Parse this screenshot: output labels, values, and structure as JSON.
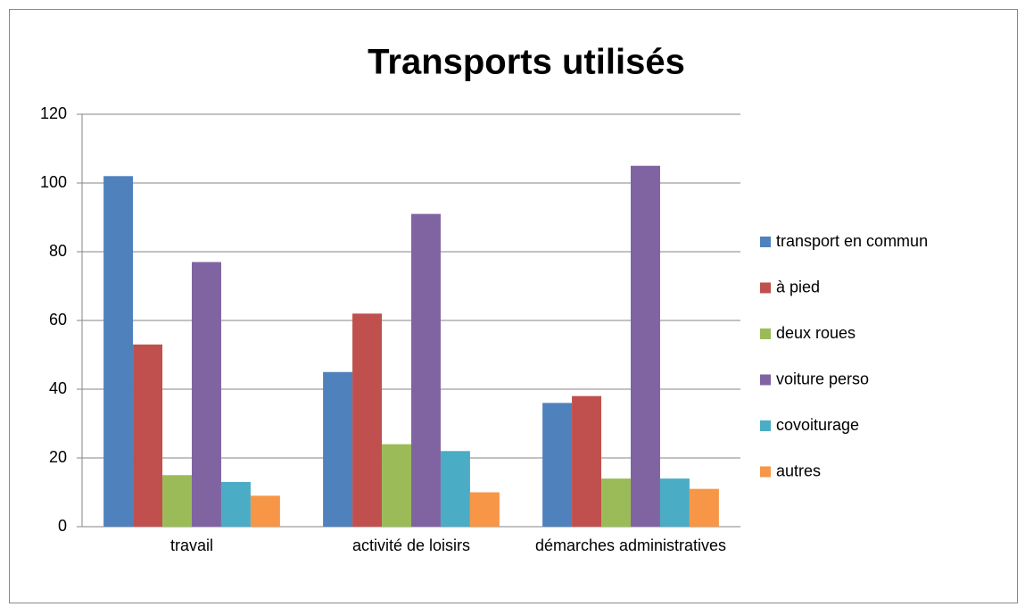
{
  "chart_data": {
    "type": "bar",
    "title": "Transports utilisés",
    "categories": [
      "travail",
      "activité de loisirs",
      "démarches administratives"
    ],
    "series": [
      {
        "name": "transport en commun",
        "color": "#4f81bd",
        "values": [
          102,
          45,
          36
        ]
      },
      {
        "name": "à pied",
        "color": "#c0504d",
        "values": [
          53,
          62,
          38
        ]
      },
      {
        "name": "deux roues",
        "color": "#9bbb59",
        "values": [
          15,
          24,
          14
        ]
      },
      {
        "name": "voiture perso",
        "color": "#8064a2",
        "values": [
          77,
          91,
          105
        ]
      },
      {
        "name": "covoiturage",
        "color": "#4bacc6",
        "values": [
          13,
          22,
          14
        ]
      },
      {
        "name": "autres",
        "color": "#f79646",
        "values": [
          9,
          10,
          11
        ]
      }
    ],
    "ylim": [
      0,
      120
    ],
    "yticks": [
      0,
      20,
      40,
      60,
      80,
      100,
      120
    ],
    "grid": true,
    "legend": "right"
  }
}
